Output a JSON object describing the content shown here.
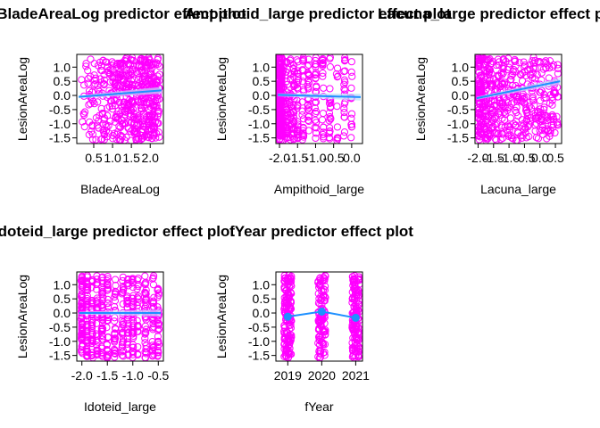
{
  "colors": {
    "points": "#ff00ff",
    "fit": "#1e90ff",
    "band": "#bcdcfa",
    "frame": "#000000"
  },
  "chart_data": [
    {
      "type": "scatter",
      "title": "BladeAreaLog predictor effect plot",
      "xlabel": "BladeAreaLog",
      "ylabel": "LesionAreaLog",
      "xlim": [
        0.05,
        2.35
      ],
      "ylim": [
        -1.7,
        1.45
      ],
      "xticks": [
        0.5,
        1.0,
        1.5,
        2.0
      ],
      "xtick_labels": [
        "0.5",
        "1.0",
        "1.5",
        "2.0"
      ],
      "yticks": [
        -1.5,
        -1.0,
        -0.5,
        0.0,
        0.5,
        1.0
      ],
      "ytick_labels": [
        "-1.5",
        "-1.0",
        "-0.5",
        "0.0",
        "0.5",
        "1.0"
      ],
      "fit_line": {
        "x": [
          0.1,
          2.3
        ],
        "y": [
          -0.05,
          0.18
        ]
      },
      "points_summary": "dense cloud of points, denser at higher x"
    },
    {
      "type": "scatter",
      "title": "Ampithoid_large predictor effect plot",
      "xlabel": "Ampithoid_large",
      "ylabel": "LesionAreaLog",
      "xlim": [
        -2.1,
        0.3
      ],
      "ylim": [
        -1.7,
        1.45
      ],
      "xticks": [
        -2.0,
        -1.5,
        -1.0,
        -0.5,
        0.0
      ],
      "xtick_labels": [
        "-2.0",
        "-1.5",
        "-1.0",
        "-0.5",
        "0.0"
      ],
      "yticks": [
        -1.5,
        -1.0,
        -0.5,
        0.0,
        0.5,
        1.0
      ],
      "ytick_labels": [
        "-1.5",
        "-1.0",
        "-0.5",
        "0.0",
        "0.5",
        "1.0"
      ],
      "fit_line": {
        "x": [
          -2.05,
          0.25
        ],
        "y": [
          0.02,
          -0.06
        ]
      },
      "points_summary": "points concentrated at low x, columns at discrete x values"
    },
    {
      "type": "scatter",
      "title": "Lacuna_large predictor effect plot",
      "xlabel": "Lacuna_large",
      "ylabel": "LesionAreaLog",
      "xlim": [
        -2.1,
        0.7
      ],
      "ylim": [
        -1.7,
        1.45
      ],
      "xticks": [
        -2.0,
        -1.5,
        -1.0,
        -0.5,
        0.0,
        0.5
      ],
      "xtick_labels": [
        "-2.0",
        "-1.5",
        "-1.0",
        "-0.5",
        "0.0",
        "0.5"
      ],
      "yticks": [
        -1.5,
        -1.0,
        -0.5,
        0.0,
        0.5,
        1.0
      ],
      "ytick_labels": [
        "-1.5",
        "-1.0",
        "-0.5",
        "0.0",
        "0.5",
        "1.0"
      ],
      "fit_line": {
        "x": [
          -2.05,
          0.65
        ],
        "y": [
          -0.1,
          0.5
        ]
      },
      "points_summary": "points concentrated at low x, spread to the right"
    },
    {
      "type": "scatter",
      "title": "Idoteid_large predictor effect plot",
      "xlabel": "Idoteid_large",
      "ylabel": "LesionAreaLog",
      "xlim": [
        -2.1,
        -0.4
      ],
      "ylim": [
        -1.7,
        1.45
      ],
      "xticks": [
        -2.0,
        -1.5,
        -1.0,
        -0.5
      ],
      "xtick_labels": [
        "-2.0",
        "-1.5",
        "-1.0",
        "-0.5"
      ],
      "yticks": [
        -1.5,
        -1.0,
        -0.5,
        0.0,
        0.5,
        1.0
      ],
      "ytick_labels": [
        "-1.5",
        "-1.0",
        "-0.5",
        "0.0",
        "0.5",
        "1.0"
      ],
      "fit_line": {
        "x": [
          -2.05,
          -0.45
        ],
        "y": [
          0.0,
          0.0
        ]
      },
      "points_summary": "points in columns at discrete x values"
    },
    {
      "type": "scatter",
      "title": "fYear predictor effect plot",
      "xlabel": "fYear",
      "ylabel": "LesionAreaLog",
      "categories": [
        "2019",
        "2020",
        "2021"
      ],
      "xlim": [
        0.65,
        3.2
      ],
      "ylim": [
        -1.7,
        1.45
      ],
      "yticks": [
        -1.5,
        -1.0,
        -0.5,
        0.0,
        0.5,
        1.0
      ],
      "ytick_labels": [
        "-1.5",
        "-1.0",
        "-0.5",
        "0.0",
        "0.5",
        "1.0"
      ],
      "effect_values": [
        -0.13,
        0.05,
        -0.17
      ],
      "points_summary": "jittered columns of points at each year"
    }
  ]
}
